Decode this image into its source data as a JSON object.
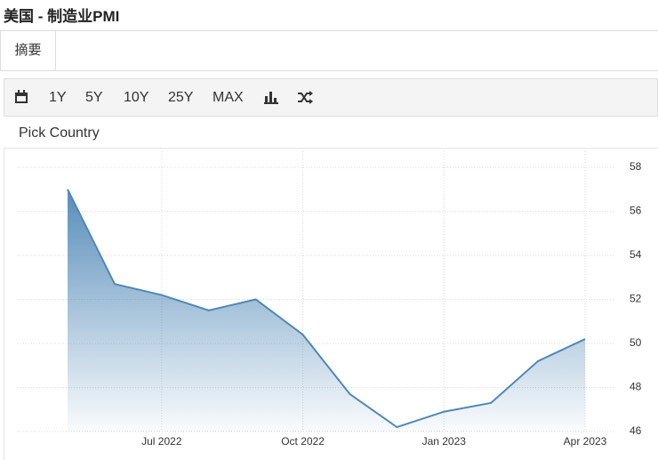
{
  "page": {
    "title": "美国 - 制造业PMI",
    "tab": "摘要",
    "ranges": [
      "1Y",
      "5Y",
      "10Y",
      "25Y",
      "MAX"
    ],
    "picker": "Pick Country"
  },
  "chart_data": {
    "type": "area",
    "categories": [
      null,
      null,
      "Jul 2022",
      null,
      null,
      "Oct 2022",
      null,
      null,
      "Jan 2023",
      null,
      null,
      "Apr 2023"
    ],
    "series": [
      {
        "color": "#4f87b6",
        "values": [
          57.0,
          52.7,
          52.2,
          51.5,
          52.0,
          50.4,
          47.7,
          46.2,
          46.9,
          47.3,
          49.2,
          50.2
        ]
      }
    ],
    "ylim": [
      46,
      58
    ],
    "yticks": [
      46,
      48,
      50,
      52,
      54,
      56,
      58
    ],
    "grid": true
  }
}
